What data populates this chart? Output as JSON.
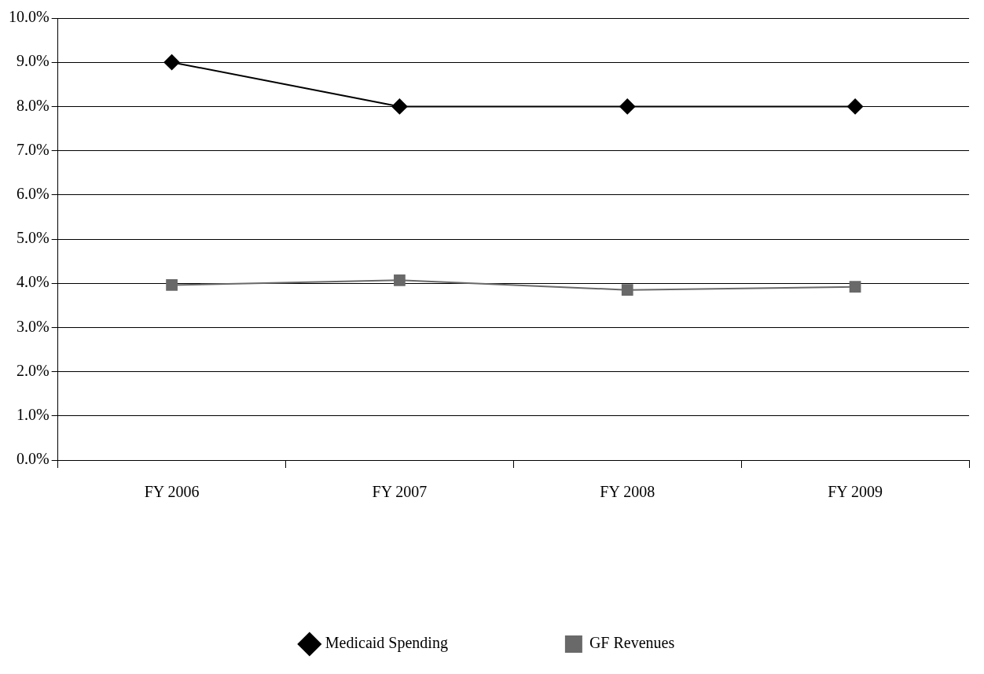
{
  "chart_data": {
    "type": "line",
    "categories": [
      "FY 2006",
      "FY 2007",
      "FY 2008",
      "FY 2009"
    ],
    "series": [
      {
        "name": "Medicaid Spending",
        "color": "#000000",
        "values": [
          9.0,
          8.0,
          8.0,
          8.0
        ],
        "marker": "diamond"
      },
      {
        "name": "GF Revenues",
        "color": "#696969",
        "values": [
          3.96,
          4.07,
          3.85,
          3.92
        ],
        "marker": "square"
      }
    ],
    "ylim": [
      0,
      10
    ],
    "yticks": [
      {
        "value": 0,
        "label": "0.0%"
      },
      {
        "value": 1,
        "label": "1.0%"
      },
      {
        "value": 2,
        "label": "2.0%"
      },
      {
        "value": 3,
        "label": "3.0%"
      },
      {
        "value": 4,
        "label": "4.0%"
      },
      {
        "value": 5,
        "label": "5.0%"
      },
      {
        "value": 6,
        "label": "6.0%"
      },
      {
        "value": 7,
        "label": "7.0%"
      },
      {
        "value": 8,
        "label": "8.0%"
      },
      {
        "value": 9,
        "label": "9.0%"
      },
      {
        "value": 10,
        "label": "10.0%"
      }
    ],
    "grid": "y",
    "legend": "bottom",
    "line_style": "solid"
  }
}
